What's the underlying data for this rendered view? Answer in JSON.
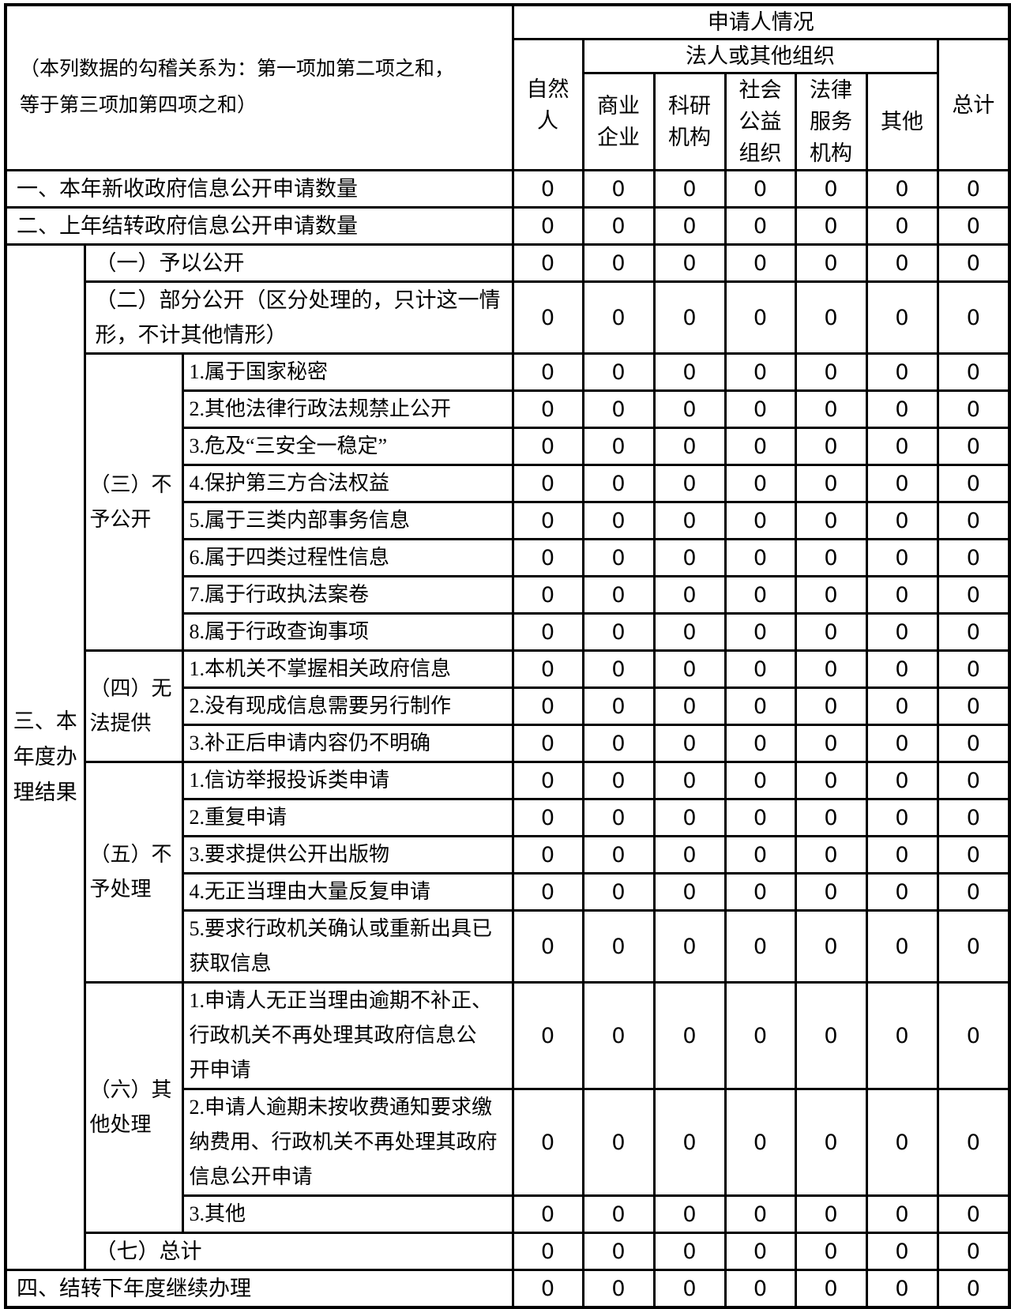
{
  "table": {
    "note": "（本列数据的勾稽关系为：第一项加第二项之和，\n等于第三项加第四项之和）",
    "header": {
      "applicant": "申请人情况",
      "legal_entity": "法人或其他组织",
      "columns": [
        "自然\n人",
        "商业\n企业",
        "科研\n机构",
        "社会\n公益\n组织",
        "法律\n服务\n机构",
        "其他",
        "总计"
      ]
    },
    "section3": {
      "label": "三、本\n年度办\n理结果",
      "groups": [
        {
          "label": "（三）不\n予公开"
        },
        {
          "label": "（四）无\n法提供"
        },
        {
          "label": "（五）不\n予处理"
        },
        {
          "label": "（六）其\n他处理"
        }
      ]
    },
    "rows": [
      {
        "label": "一、本年新收政府信息公开申请数量",
        "values": [
          0,
          0,
          0,
          0,
          0,
          0,
          0
        ]
      },
      {
        "label": "二、上年结转政府信息公开申请数量",
        "values": [
          0,
          0,
          0,
          0,
          0,
          0,
          0
        ]
      },
      {
        "label": "（一）予以公开",
        "values": [
          0,
          0,
          0,
          0,
          0,
          0,
          0
        ]
      },
      {
        "label": "（二）部分公开（区分处理的，只计这一情\n形，不计其他情形）",
        "values": [
          0,
          0,
          0,
          0,
          0,
          0,
          0
        ]
      },
      {
        "label": "1.属于国家秘密",
        "values": [
          0,
          0,
          0,
          0,
          0,
          0,
          0
        ]
      },
      {
        "label": "2.其他法律行政法规禁止公开",
        "values": [
          0,
          0,
          0,
          0,
          0,
          0,
          0
        ]
      },
      {
        "label": "3.危及“三安全一稳定”",
        "values": [
          0,
          0,
          0,
          0,
          0,
          0,
          0
        ]
      },
      {
        "label": "4.保护第三方合法权益",
        "values": [
          0,
          0,
          0,
          0,
          0,
          0,
          0
        ]
      },
      {
        "label": "5.属于三类内部事务信息",
        "values": [
          0,
          0,
          0,
          0,
          0,
          0,
          0
        ]
      },
      {
        "label": "6.属于四类过程性信息",
        "values": [
          0,
          0,
          0,
          0,
          0,
          0,
          0
        ]
      },
      {
        "label": "7.属于行政执法案卷",
        "values": [
          0,
          0,
          0,
          0,
          0,
          0,
          0
        ]
      },
      {
        "label": "8.属于行政查询事项",
        "values": [
          0,
          0,
          0,
          0,
          0,
          0,
          0
        ]
      },
      {
        "label": "1.本机关不掌握相关政府信息",
        "values": [
          0,
          0,
          0,
          0,
          0,
          0,
          0
        ]
      },
      {
        "label": "2.没有现成信息需要另行制作",
        "values": [
          0,
          0,
          0,
          0,
          0,
          0,
          0
        ]
      },
      {
        "label": "3.补正后申请内容仍不明确",
        "values": [
          0,
          0,
          0,
          0,
          0,
          0,
          0
        ]
      },
      {
        "label": "1.信访举报投诉类申请",
        "values": [
          0,
          0,
          0,
          0,
          0,
          0,
          0
        ]
      },
      {
        "label": "2.重复申请",
        "values": [
          0,
          0,
          0,
          0,
          0,
          0,
          0
        ]
      },
      {
        "label": "3.要求提供公开出版物",
        "values": [
          0,
          0,
          0,
          0,
          0,
          0,
          0
        ]
      },
      {
        "label": "4.无正当理由大量反复申请",
        "values": [
          0,
          0,
          0,
          0,
          0,
          0,
          0
        ]
      },
      {
        "label": "5.要求行政机关确认或重新出具已\n获取信息",
        "values": [
          0,
          0,
          0,
          0,
          0,
          0,
          0
        ]
      },
      {
        "label": "1.申请人无正当理由逾期不补正、\n行政机关不再处理其政府信息公\n开申请",
        "values": [
          0,
          0,
          0,
          0,
          0,
          0,
          0
        ]
      },
      {
        "label": "2.申请人逾期未按收费通知要求缴\n纳费用、行政机关不再处理其政府\n信息公开申请",
        "values": [
          0,
          0,
          0,
          0,
          0,
          0,
          0
        ]
      },
      {
        "label": "3.其他",
        "values": [
          0,
          0,
          0,
          0,
          0,
          0,
          0
        ]
      },
      {
        "label": "（七）总计",
        "values": [
          0,
          0,
          0,
          0,
          0,
          0,
          0
        ]
      },
      {
        "label": "四、结转下年度继续办理",
        "values": [
          0,
          0,
          0,
          0,
          0,
          0,
          0
        ]
      }
    ]
  }
}
